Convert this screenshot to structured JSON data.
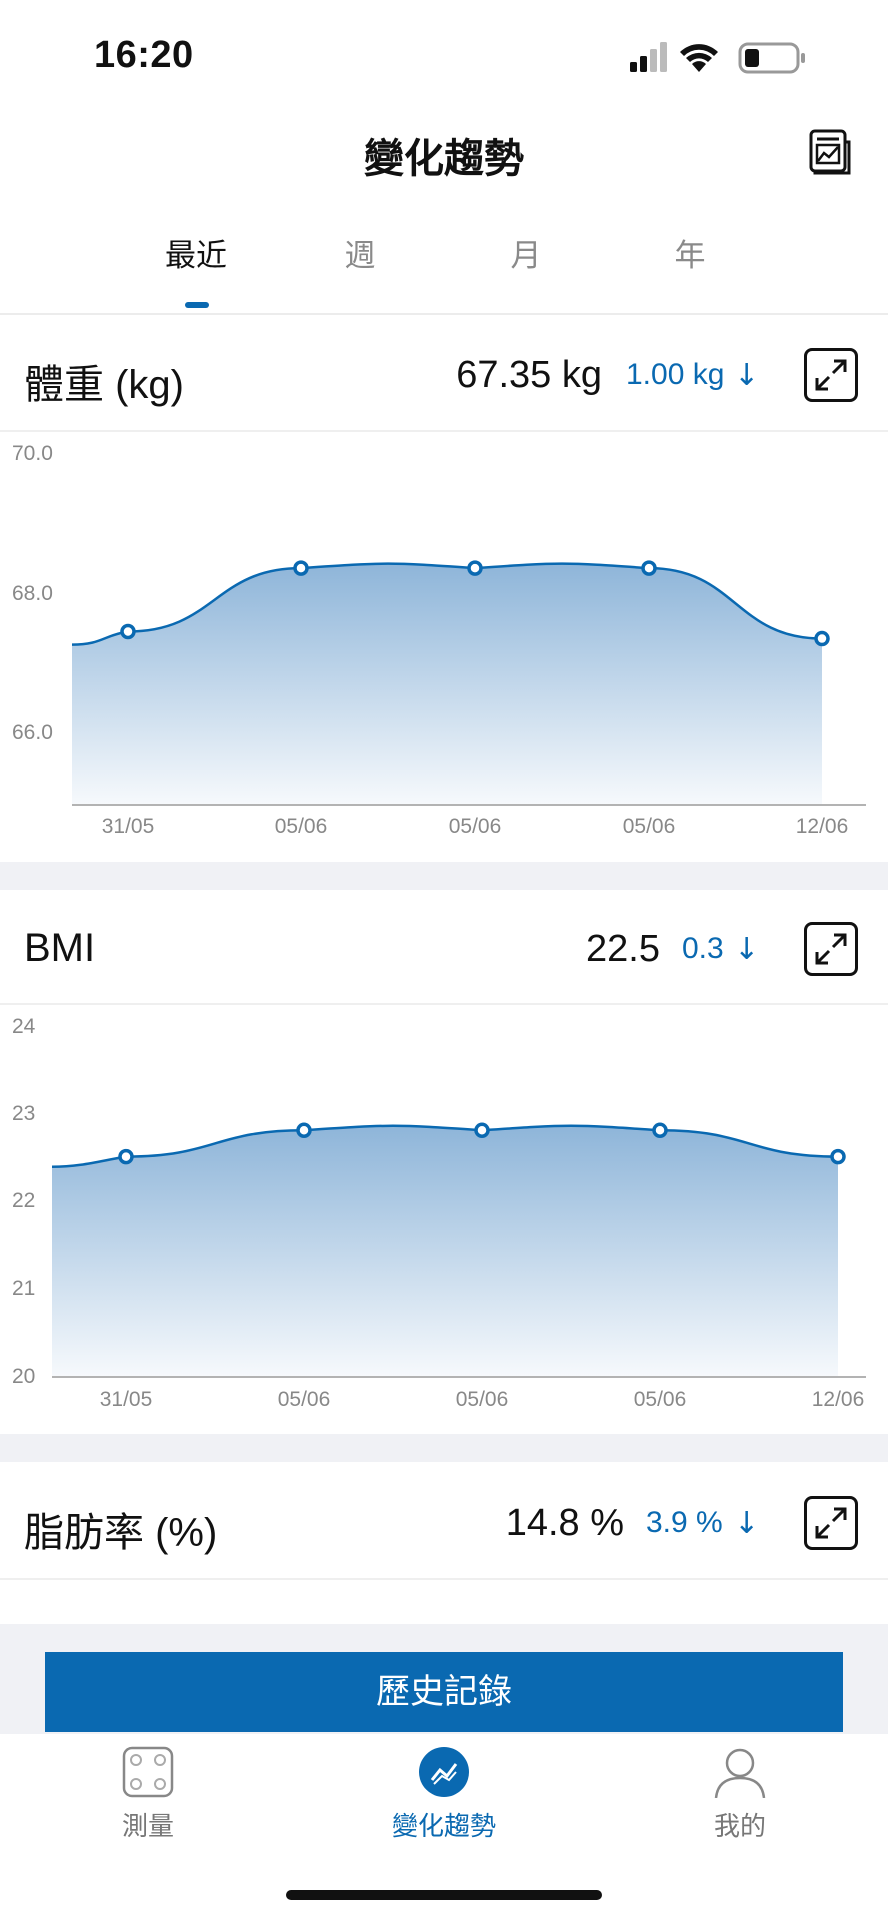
{
  "status_bar": {
    "time": "16:20"
  },
  "nav": {
    "title": "變化趨勢",
    "report_icon": "report-chart-icon"
  },
  "tabs": [
    {
      "label": "最近",
      "active": true
    },
    {
      "label": "週",
      "active": false
    },
    {
      "label": "月",
      "active": false
    },
    {
      "label": "年",
      "active": false
    }
  ],
  "cards": {
    "weight": {
      "title": "體重 (kg)",
      "value": "67.35 kg",
      "change": "1.00 kg",
      "arrow": "↓"
    },
    "bmi": {
      "title": "BMI",
      "value": "22.5",
      "change": "0.3",
      "arrow": "↓"
    },
    "fat": {
      "title": "脂肪率 (%)",
      "value": "14.8 %",
      "change": "3.9 %",
      "arrow": "↓"
    }
  },
  "chart_data": [
    {
      "type": "area",
      "categories": [
        "31/05",
        "05/06",
        "05/06",
        "05/06",
        "12/06"
      ],
      "values": [
        67.45,
        68.35,
        68.35,
        68.35,
        67.35
      ],
      "y_ticks": [
        "70.0",
        "68.0",
        "66.0"
      ],
      "ylim": [
        65.0,
        70.0
      ],
      "grid": false,
      "color": "#0a69b1"
    },
    {
      "type": "area",
      "categories": [
        "31/05",
        "05/06",
        "05/06",
        "05/06",
        "12/06"
      ],
      "values": [
        22.5,
        22.8,
        22.8,
        22.8,
        22.5
      ],
      "y_ticks": [
        "24",
        "23",
        "22",
        "21",
        "20"
      ],
      "ylim": [
        20,
        24
      ],
      "grid": false,
      "color": "#0a69b1"
    }
  ],
  "history_button": {
    "label": "歷史記錄"
  },
  "tabbar": [
    {
      "label": "測量",
      "icon": "scale-icon",
      "active": false
    },
    {
      "label": "變化趨勢",
      "icon": "trend-icon",
      "active": true
    },
    {
      "label": "我的",
      "icon": "person-icon",
      "active": false
    }
  ]
}
